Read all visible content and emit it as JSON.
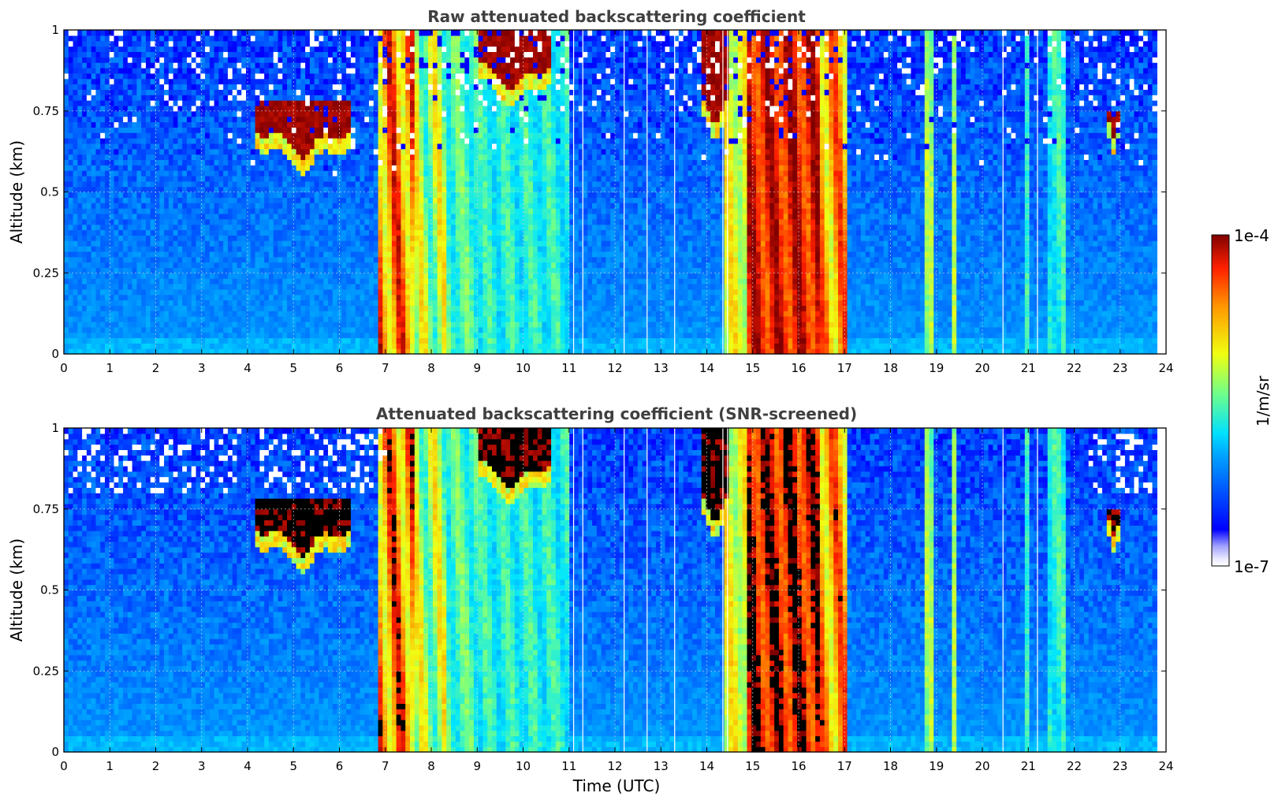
{
  "chart_data": [
    {
      "type": "heatmap",
      "title": "Raw attenuated backscattering coefficient",
      "xlabel": "",
      "ylabel": "Altitude (km)",
      "xlim": [
        0,
        24
      ],
      "ylim": [
        0,
        1
      ],
      "x_ticks": [
        "0",
        "1",
        "2",
        "3",
        "4",
        "5",
        "6",
        "7",
        "8",
        "9",
        "10",
        "11",
        "12",
        "13",
        "14",
        "15",
        "16",
        "17",
        "18",
        "19",
        "20",
        "21",
        "22",
        "23",
        "24"
      ],
      "y_ticks": [
        "0",
        "0.25",
        "0.5",
        "0.75",
        "1"
      ],
      "grid": true,
      "data_end_time": 23.8,
      "colormap": "jet",
      "clouds": [
        {
          "t_start": 4.2,
          "t_end": 6.2,
          "alt_base": 0.62,
          "alt_top": 0.78
        },
        {
          "t_start": 9.0,
          "t_end": 10.6,
          "alt_base": 0.82,
          "alt_top": 1.0
        },
        {
          "t_start": 13.9,
          "t_end": 14.5,
          "alt_base": 0.72,
          "alt_top": 1.0
        },
        {
          "t_start": 22.7,
          "t_end": 23.0,
          "alt_base": 0.65,
          "alt_top": 0.75
        }
      ],
      "columns": [
        {
          "t_start": 6.8,
          "t_end": 7.6,
          "level": "high"
        },
        {
          "t_start": 14.9,
          "t_end": 16.5,
          "level": "very high"
        },
        {
          "t_start": 16.5,
          "t_end": 17.1,
          "level": "high"
        },
        {
          "t_start": 18.7,
          "t_end": 18.9,
          "level": "moderate"
        },
        {
          "t_start": 19.3,
          "t_end": 19.45,
          "level": "moderate"
        },
        {
          "t_start": 20.9,
          "t_end": 21.0,
          "level": "moderate"
        }
      ]
    },
    {
      "type": "heatmap",
      "title": "Attenuated backscattering coefficient (SNR-screened)",
      "xlabel": "Time (UTC)",
      "ylabel": "Altitude (km)",
      "xlim": [
        0,
        24
      ],
      "ylim": [
        0,
        1
      ],
      "x_ticks": [
        "0",
        "1",
        "2",
        "3",
        "4",
        "5",
        "6",
        "7",
        "8",
        "9",
        "10",
        "11",
        "12",
        "13",
        "14",
        "15",
        "16",
        "17",
        "18",
        "19",
        "20",
        "21",
        "22",
        "23",
        "24"
      ],
      "y_ticks": [
        "0",
        "0.25",
        "0.5",
        "0.75",
        "1"
      ],
      "grid": true,
      "data_end_time": 23.8,
      "colormap": "jet",
      "screened": true
    }
  ],
  "colorbar": {
    "label": "1/m/sr",
    "max_label": "1e-4",
    "min_label": "1e-7",
    "min_value": 1e-07,
    "max_value": 0.0001,
    "scale": "log"
  }
}
